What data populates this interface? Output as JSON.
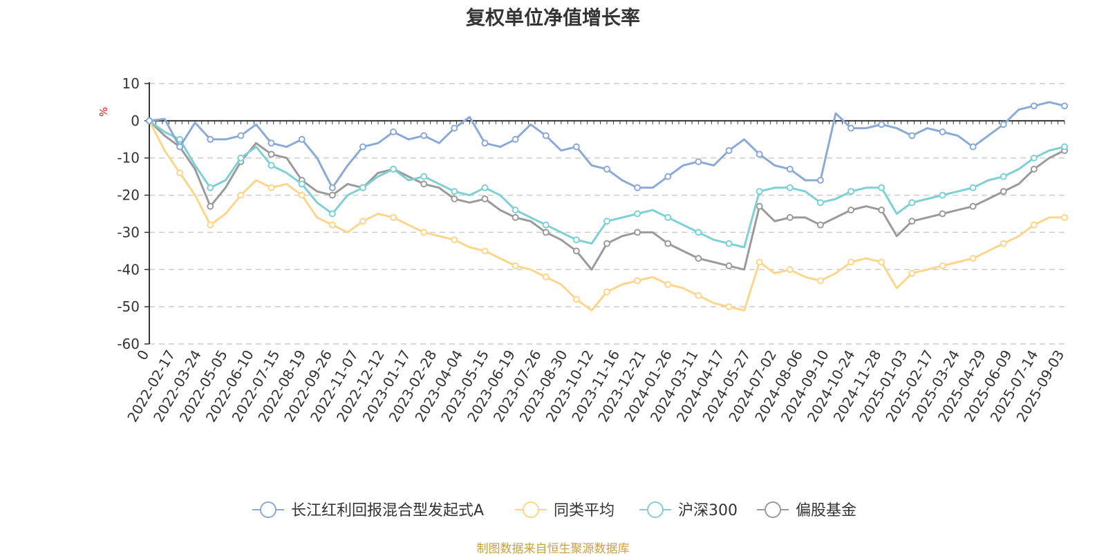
{
  "title": "复权单位净值增长率",
  "source": "制图数据来自恒生聚源数据库",
  "chart_data": {
    "type": "line",
    "title": "复权单位净值增长率",
    "ylabel": "%",
    "ylim": [
      -60,
      10
    ],
    "yticks": [
      10,
      0,
      -10,
      -20,
      -30,
      -40,
      -50,
      -60
    ],
    "grid": true,
    "legend_position": "bottom",
    "x_tick_labels": [
      "0",
      "2022-02-17",
      "2022-03-24",
      "2022-05-05",
      "2022-06-10",
      "2022-07-15",
      "2022-08-19",
      "2022-09-26",
      "2022-11-07",
      "2022-12-12",
      "2023-01-17",
      "2023-02-28",
      "2023-04-04",
      "2023-05-15",
      "2023-06-19",
      "2023-07-26",
      "2023-08-30",
      "2023-10-12",
      "2023-11-16",
      "2023-12-21",
      "2024-01-26",
      "2024-03-11",
      "2024-04-17",
      "2024-05-27",
      "2024-07-02",
      "2024-08-06",
      "2024-09-10",
      "2024-10-24",
      "2024-11-28",
      "2025-01-03",
      "2025-02-17",
      "2025-03-24",
      "2025-04-29",
      "2025-06-09",
      "2025-07-14",
      "2025-09-03"
    ],
    "series": [
      {
        "name": "长江红利回报混合型发起式A",
        "color": "#8aa9d6",
        "values": [
          0,
          0.5,
          -7,
          -0.5,
          -5,
          -5,
          -4,
          -1,
          -6,
          -7,
          -5,
          -10,
          -18,
          -12,
          -7,
          -6,
          -3,
          -5,
          -4,
          -6,
          -2,
          1,
          -6,
          -7,
          -5,
          -1,
          -4,
          -8,
          -7,
          -12,
          -13,
          -16,
          -18,
          -18,
          -15,
          -12,
          -11,
          -12,
          -8,
          -5,
          -9,
          -12,
          -13,
          -16,
          -16,
          2,
          -2,
          -2,
          -1,
          -2,
          -4,
          -2,
          -3,
          -4,
          -7,
          -4,
          -1,
          3,
          4,
          5,
          4
        ]
      },
      {
        "name": "同类平均",
        "color": "#fdd58a",
        "values": [
          0,
          -8,
          -14,
          -20,
          -28,
          -25,
          -20,
          -16,
          -18,
          -17,
          -20,
          -26,
          -28,
          -30,
          -27,
          -25,
          -26,
          -28,
          -30,
          -31,
          -32,
          -34,
          -35,
          -37,
          -39,
          -40,
          -42,
          -44,
          -48,
          -51,
          -46,
          -44,
          -43,
          -42,
          -44,
          -45,
          -47,
          -49,
          -50,
          -51,
          -38,
          -41,
          -40,
          -42,
          -43,
          -41,
          -38,
          -37,
          -38,
          -45,
          -41,
          -40,
          -39,
          -38,
          -37,
          -35,
          -33,
          -31,
          -28,
          -26,
          -26
        ]
      },
      {
        "name": "沪深300",
        "color": "#7dd0d3",
        "values": [
          0,
          -3,
          -5,
          -12,
          -18,
          -16,
          -10,
          -7,
          -12,
          -14,
          -17,
          -22,
          -25,
          -20,
          -18,
          -15,
          -13,
          -16,
          -15,
          -17,
          -19,
          -20,
          -18,
          -20,
          -24,
          -26,
          -28,
          -30,
          -32,
          -33,
          -27,
          -26,
          -25,
          -24,
          -26,
          -28,
          -30,
          -32,
          -33,
          -34,
          -19,
          -18,
          -18,
          -19,
          -22,
          -21,
          -19,
          -18,
          -18,
          -25,
          -22,
          -21,
          -20,
          -19,
          -18,
          -16,
          -15,
          -13,
          -10,
          -8,
          -7
        ]
      },
      {
        "name": "偏股基金",
        "color": "#9a9a9a",
        "values": [
          0,
          -4,
          -7,
          -13,
          -23,
          -18,
          -11,
          -6,
          -9,
          -10,
          -16,
          -19,
          -20,
          -17,
          -18,
          -14,
          -13,
          -15,
          -17,
          -18,
          -21,
          -22,
          -21,
          -24,
          -26,
          -27,
          -30,
          -32,
          -35,
          -40,
          -33,
          -31,
          -30,
          -30,
          -33,
          -35,
          -37,
          -38,
          -39,
          -40,
          -23,
          -27,
          -26,
          -26,
          -28,
          -26,
          -24,
          -23,
          -24,
          -31,
          -27,
          -26,
          -25,
          -24,
          -23,
          -21,
          -19,
          -17,
          -13,
          -10,
          -8
        ]
      }
    ]
  }
}
